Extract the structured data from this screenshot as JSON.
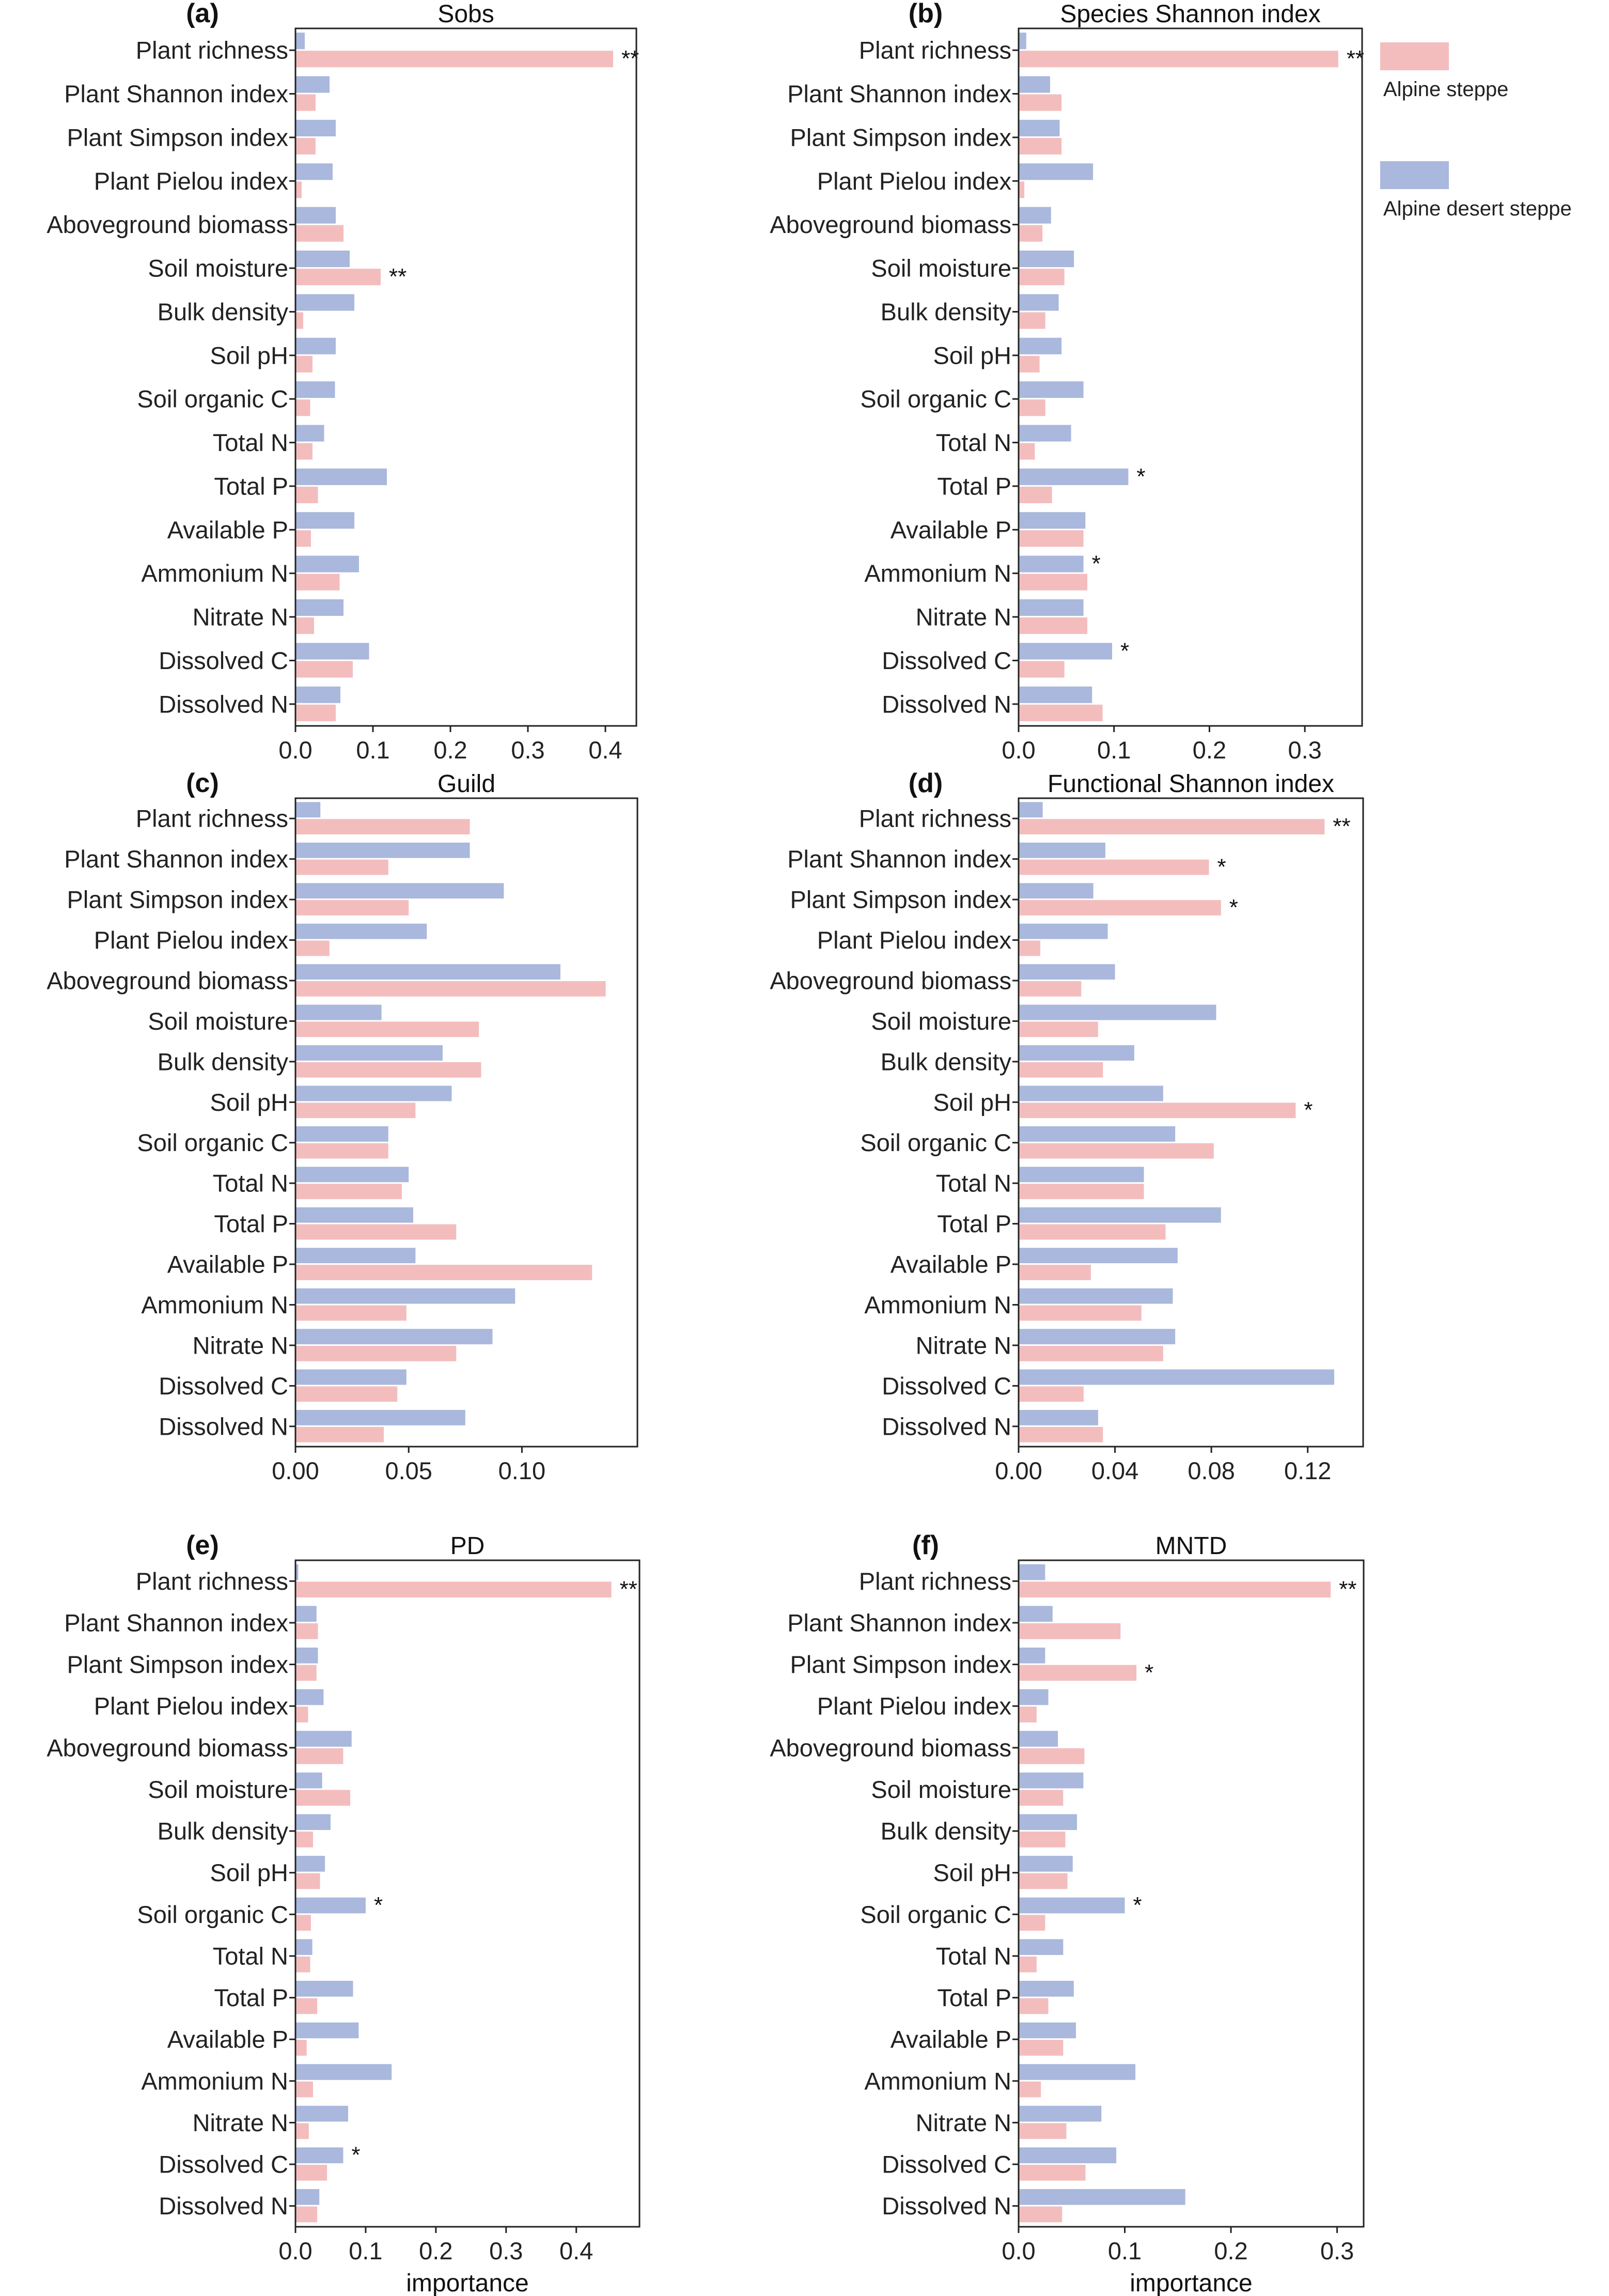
{
  "colors": {
    "alpine_steppe": "#F3BDBE",
    "alpine_desert_steppe": "#A9B8DC",
    "frame": "#222222"
  },
  "legend": {
    "items": [
      {
        "label": "Alpine steppe",
        "color": "#F3BDBE"
      },
      {
        "label": "Alpine desert steppe",
        "color": "#A9B8DC"
      }
    ]
  },
  "chart_data": [
    {
      "id": "a",
      "letter": "(a)",
      "title": "Sobs",
      "type": "bar",
      "orientation": "horizontal",
      "categories": [
        "Plant richness",
        "Plant Shannon index",
        "Plant Simpson index",
        "Plant Pielou index",
        "Aboveground biomass",
        "Soil moisture",
        "Bulk density",
        "Soil pH",
        "Soil organic C",
        "Total N",
        "Total P",
        "Available P",
        "Ammonium N",
        "Nitrate N",
        "Dissolved C",
        "Dissolved N"
      ],
      "series": [
        {
          "name": "Alpine desert steppe",
          "values": [
            0.012,
            0.044,
            0.052,
            0.048,
            0.052,
            0.07,
            0.076,
            0.052,
            0.051,
            0.037,
            0.118,
            0.076,
            0.082,
            0.062,
            0.095,
            0.058
          ]
        },
        {
          "name": "Alpine steppe",
          "values": [
            0.41,
            0.026,
            0.026,
            0.008,
            0.062,
            0.11,
            0.01,
            0.022,
            0.019,
            0.022,
            0.029,
            0.02,
            0.057,
            0.024,
            0.074,
            0.052
          ]
        }
      ],
      "significance": [
        {
          "index": 0,
          "series": "Alpine steppe",
          "label": "**"
        },
        {
          "index": 5,
          "series": "Alpine steppe",
          "label": "**"
        }
      ],
      "xlim": [
        0,
        0.44
      ],
      "xticks": [
        0,
        0.1,
        0.2,
        0.3,
        0.4
      ],
      "xtick_labels": [
        "0.0",
        "0.1",
        "0.2",
        "0.3",
        "0.4"
      ],
      "xlabel": ""
    },
    {
      "id": "b",
      "letter": "(b)",
      "title": "Species Shannon index",
      "type": "bar",
      "orientation": "horizontal",
      "categories": [
        "Plant richness",
        "Plant Shannon index",
        "Plant Simpson index",
        "Plant Pielou index",
        "Aboveground biomass",
        "Soil moisture",
        "Bulk density",
        "Soil pH",
        "Soil organic C",
        "Total N",
        "Total P",
        "Available P",
        "Ammonium N",
        "Nitrate N",
        "Dissolved C",
        "Dissolved N"
      ],
      "series": [
        {
          "name": "Alpine desert steppe",
          "values": [
            0.008,
            0.033,
            0.043,
            0.078,
            0.034,
            0.058,
            0.042,
            0.045,
            0.068,
            0.055,
            0.115,
            0.07,
            0.068,
            0.068,
            0.098,
            0.077
          ]
        },
        {
          "name": "Alpine steppe",
          "values": [
            0.335,
            0.045,
            0.045,
            0.006,
            0.025,
            0.048,
            0.028,
            0.022,
            0.028,
            0.017,
            0.035,
            0.068,
            0.072,
            0.072,
            0.048,
            0.088
          ]
        }
      ],
      "significance": [
        {
          "index": 0,
          "series": "Alpine steppe",
          "label": "**"
        },
        {
          "index": 10,
          "series": "Alpine desert steppe",
          "label": "*"
        },
        {
          "index": 12,
          "series": "Alpine desert steppe",
          "label": "*"
        },
        {
          "index": 14,
          "series": "Alpine desert steppe",
          "label": "*"
        }
      ],
      "xlim": [
        0,
        0.36
      ],
      "xticks": [
        0,
        0.1,
        0.2,
        0.3
      ],
      "xtick_labels": [
        "0.0",
        "0.1",
        "0.2",
        "0.3"
      ],
      "xlabel": ""
    },
    {
      "id": "c",
      "letter": "(c)",
      "title": "Guild",
      "type": "bar",
      "orientation": "horizontal",
      "categories": [
        "Plant richness",
        "Plant Shannon index",
        "Plant Simpson index",
        "Plant Pielou index",
        "Aboveground biomass",
        "Soil moisture",
        "Bulk density",
        "Soil pH",
        "Soil organic C",
        "Total N",
        "Total P",
        "Available P",
        "Ammonium N",
        "Nitrate N",
        "Dissolved C",
        "Dissolved N"
      ],
      "series": [
        {
          "name": "Alpine desert steppe",
          "values": [
            0.011,
            0.077,
            0.092,
            0.058,
            0.117,
            0.038,
            0.065,
            0.069,
            0.041,
            0.05,
            0.052,
            0.053,
            0.097,
            0.087,
            0.049,
            0.075
          ]
        },
        {
          "name": "Alpine steppe",
          "values": [
            0.077,
            0.041,
            0.05,
            0.015,
            0.137,
            0.081,
            0.082,
            0.053,
            0.041,
            0.047,
            0.071,
            0.131,
            0.049,
            0.071,
            0.045,
            0.039
          ]
        }
      ],
      "significance": [],
      "xlim": [
        0,
        0.151
      ],
      "xticks": [
        0,
        0.05,
        0.1
      ],
      "xtick_labels": [
        "0.00",
        "0.05",
        "0.10"
      ],
      "xlabel": ""
    },
    {
      "id": "d",
      "letter": "(d)",
      "title": "Functional Shannon index",
      "type": "bar",
      "orientation": "horizontal",
      "categories": [
        "Plant richness",
        "Plant Shannon index",
        "Plant Simpson index",
        "Plant Pielou index",
        "Aboveground biomass",
        "Soil moisture",
        "Bulk density",
        "Soil pH",
        "Soil organic C",
        "Total N",
        "Total P",
        "Available P",
        "Ammonium N",
        "Nitrate N",
        "Dissolved C",
        "Dissolved N"
      ],
      "series": [
        {
          "name": "Alpine desert steppe",
          "values": [
            0.01,
            0.036,
            0.031,
            0.037,
            0.04,
            0.082,
            0.048,
            0.06,
            0.065,
            0.052,
            0.084,
            0.066,
            0.064,
            0.065,
            0.131,
            0.033
          ]
        },
        {
          "name": "Alpine steppe",
          "values": [
            0.127,
            0.079,
            0.084,
            0.009,
            0.026,
            0.033,
            0.035,
            0.115,
            0.081,
            0.052,
            0.061,
            0.03,
            0.051,
            0.06,
            0.027,
            0.035
          ]
        }
      ],
      "significance": [
        {
          "index": 0,
          "series": "Alpine steppe",
          "label": "**"
        },
        {
          "index": 1,
          "series": "Alpine steppe",
          "label": "*"
        },
        {
          "index": 2,
          "series": "Alpine steppe",
          "label": "*"
        },
        {
          "index": 7,
          "series": "Alpine steppe",
          "label": "*"
        }
      ],
      "xlim": [
        0,
        0.143
      ],
      "xticks": [
        0,
        0.04,
        0.08,
        0.12
      ],
      "xtick_labels": [
        "0.00",
        "0.04",
        "0.08",
        "0.12"
      ],
      "xlabel": ""
    },
    {
      "id": "e",
      "letter": "(e)",
      "title": "PD",
      "type": "bar",
      "orientation": "horizontal",
      "categories": [
        "Plant richness",
        "Plant Shannon index",
        "Plant Simpson index",
        "Plant Pielou index",
        "Aboveground biomass",
        "Soil moisture",
        "Bulk density",
        "Soil pH",
        "Soil organic C",
        "Total N",
        "Total P",
        "Available P",
        "Ammonium N",
        "Nitrate N",
        "Dissolved C",
        "Dissolved N"
      ],
      "series": [
        {
          "name": "Alpine desert steppe",
          "values": [
            0.004,
            0.03,
            0.032,
            0.04,
            0.08,
            0.038,
            0.05,
            0.042,
            0.1,
            0.024,
            0.082,
            0.09,
            0.137,
            0.075,
            0.068,
            0.034
          ]
        },
        {
          "name": "Alpine steppe",
          "values": [
            0.45,
            0.032,
            0.03,
            0.018,
            0.068,
            0.078,
            0.025,
            0.035,
            0.022,
            0.021,
            0.031,
            0.016,
            0.025,
            0.019,
            0.045,
            0.031
          ]
        }
      ],
      "significance": [
        {
          "index": 0,
          "series": "Alpine steppe",
          "label": "**"
        },
        {
          "index": 8,
          "series": "Alpine desert steppe",
          "label": "*"
        },
        {
          "index": 14,
          "series": "Alpine desert steppe",
          "label": "*"
        }
      ],
      "xlim": [
        0,
        0.49
      ],
      "xticks": [
        0,
        0.1,
        0.2,
        0.3,
        0.4
      ],
      "xtick_labels": [
        "0.0",
        "0.1",
        "0.2",
        "0.3",
        "0.4"
      ],
      "xlabel": "importance"
    },
    {
      "id": "f",
      "letter": "(f)",
      "title": "MNTD",
      "type": "bar",
      "orientation": "horizontal",
      "categories": [
        "Plant richness",
        "Plant Shannon index",
        "Plant Simpson index",
        "Plant Pielou index",
        "Aboveground biomass",
        "Soil moisture",
        "Bulk density",
        "Soil pH",
        "Soil organic C",
        "Total N",
        "Total P",
        "Available P",
        "Ammonium N",
        "Nitrate N",
        "Dissolved C",
        "Dissolved N"
      ],
      "series": [
        {
          "name": "Alpine desert steppe",
          "values": [
            0.025,
            0.032,
            0.025,
            0.028,
            0.037,
            0.061,
            0.055,
            0.051,
            0.1,
            0.042,
            0.052,
            0.054,
            0.11,
            0.078,
            0.092,
            0.157
          ]
        },
        {
          "name": "Alpine steppe",
          "values": [
            0.294,
            0.096,
            0.111,
            0.017,
            0.062,
            0.042,
            0.044,
            0.046,
            0.025,
            0.017,
            0.028,
            0.042,
            0.021,
            0.045,
            0.063,
            0.041
          ]
        }
      ],
      "significance": [
        {
          "index": 0,
          "series": "Alpine steppe",
          "label": "**"
        },
        {
          "index": 2,
          "series": "Alpine steppe",
          "label": "*"
        },
        {
          "index": 8,
          "series": "Alpine desert steppe",
          "label": "*"
        }
      ],
      "xlim": [
        0,
        0.325
      ],
      "xticks": [
        0,
        0.1,
        0.2,
        0.3
      ],
      "xtick_labels": [
        "0.0",
        "0.1",
        "0.2",
        "0.3"
      ],
      "xlabel": "importance"
    }
  ]
}
